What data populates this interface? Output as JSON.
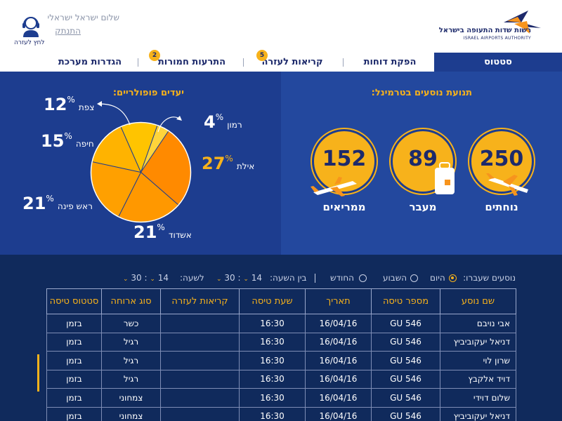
{
  "header": {
    "logo_text": "רשות שדות התעופה בישראל",
    "logo_sub": "ISRAEL AIRPORTS AUTHORITY",
    "greeting": "שלום ישראל ישראלי",
    "logout": "התנתק",
    "support_label": "לחץ לעזרה",
    "support_icon": "headset-icon"
  },
  "tabs": [
    {
      "label": "סטטוס",
      "active": true
    },
    {
      "label": "הפקת דוחות"
    },
    {
      "label": "קריאות לעזרה",
      "badge": "5"
    },
    {
      "label": "התרעות חמורות",
      "badge": "2"
    },
    {
      "label": "הגדרות מערכת"
    }
  ],
  "destinations": {
    "title": "יעדים פופולריים:",
    "items": [
      {
        "name": "צפת",
        "value": "12",
        "pct": "%"
      },
      {
        "name": "רמון",
        "value": "4",
        "pct": "%"
      },
      {
        "name": "חיפה",
        "value": "15",
        "pct": "%"
      },
      {
        "name": "אילת",
        "value": "27",
        "pct": "%"
      },
      {
        "name": "ראש פינה",
        "value": "21",
        "pct": "%"
      },
      {
        "name": "אשדוד",
        "value": "21",
        "pct": "%"
      }
    ]
  },
  "chart_data": {
    "type": "pie",
    "title": "יעדים פופולריים:",
    "categories": [
      "צפת",
      "רמון",
      "אילת",
      "אשדוד",
      "ראש פינה",
      "חיפה"
    ],
    "values": [
      12,
      4,
      27,
      21,
      21,
      15
    ],
    "colors": [
      "#ffc400",
      "#ffd43b",
      "#ff8a00",
      "#ff9800",
      "#ffa000",
      "#ffb300"
    ]
  },
  "passengers": {
    "title": "תנועת נוסעים בטרמינל:",
    "items": [
      {
        "label": "נוחתים",
        "value": "250"
      },
      {
        "label": "מעבר",
        "value": "89"
      },
      {
        "label": "ממריאים",
        "value": "152"
      }
    ]
  },
  "filters": {
    "label": "נוסעים שעברו:",
    "options": [
      "היום",
      "השבוע",
      "החודש"
    ],
    "selected": "היום",
    "from_label": "בין השעה:",
    "from_min": "30",
    "from_hour": "14",
    "to_label": "לשעה:",
    "to_min": "30",
    "to_hour": "14",
    "sep": ":"
  },
  "table": {
    "columns": [
      "שם נוסע",
      "מספר טיסה",
      "תאריך",
      "שעת טיסה",
      "קריאות לעזרה",
      "סוג ארוחה",
      "סטטוס טיסה"
    ],
    "rows": [
      [
        "אבי נויבם",
        "GU 546",
        "16/04/16",
        "16:30",
        "",
        "כשר",
        "בזמן"
      ],
      [
        "דניאל יעקוביביץ",
        "GU 546",
        "16/04/16",
        "16:30",
        "",
        "רגיל",
        "בזמן"
      ],
      [
        "שרון לוי",
        "GU 546",
        "16/04/16",
        "16:30",
        "",
        "רגיל",
        "בזמן"
      ],
      [
        "דויד אלקבץ",
        "GU 546",
        "16/04/16",
        "16:30",
        "",
        "רגיל",
        "בזמן"
      ],
      [
        "שלום דוידי",
        "GU 546",
        "16/04/16",
        "16:30",
        "",
        "צמחוני",
        "בזמן"
      ],
      [
        "דניאל יעקוביביץ",
        "GU 546",
        "16/04/16",
        "16:30",
        "",
        "צמחוני",
        "בזמן"
      ]
    ]
  }
}
